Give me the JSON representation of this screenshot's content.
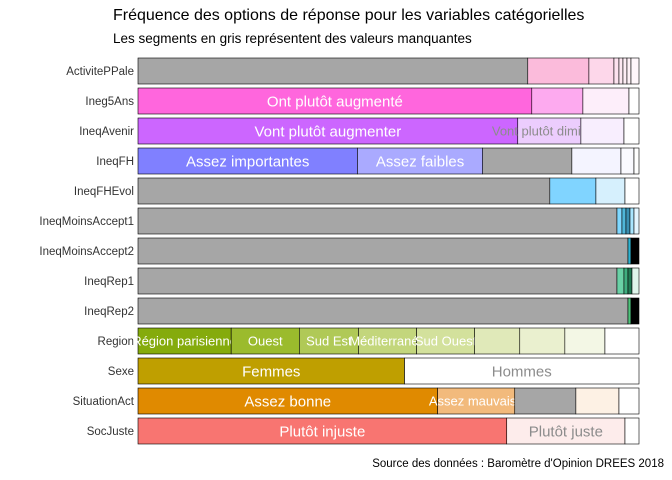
{
  "title": "Fréquence des options de réponse pour les variables catégorielles",
  "subtitle": "Les segments en gris représentent des valeurs manquantes",
  "caption": "Source des données : Baromètre d'Opinion DREES 2018",
  "chart_data": {
    "type": "bar",
    "orientation": "horizontal",
    "stacked": true,
    "scale": "proportion",
    "xlim": [
      0,
      1
    ],
    "missing_color": "#a6a6a6",
    "categories": [
      "ActivitePPale",
      "Ineg5Ans",
      "IneqAvenir",
      "IneqFH",
      "IneqFHEvol",
      "IneqMoinsAccept1",
      "IneqMoinsAccept2",
      "IneqRep1",
      "IneqRep2",
      "Region",
      "Sexe",
      "SituationAct",
      "SocJuste"
    ],
    "bars": [
      {
        "variable": "ActivitePPale",
        "segments": [
          {
            "label": "",
            "value": 0.778,
            "color": "#a6a6a6",
            "missing": true
          },
          {
            "label": "",
            "value": 0.122,
            "color": "#fbbbdb"
          },
          {
            "label": "",
            "value": 0.05,
            "color": "#fdd7ea"
          },
          {
            "label": "",
            "value": 0.01,
            "color": "#fde2ef"
          },
          {
            "label": "",
            "value": 0.008,
            "color": "#fde8f2"
          },
          {
            "label": "",
            "value": 0.008,
            "color": "#feedf5"
          },
          {
            "label": "",
            "value": 0.008,
            "color": "#fef1f7"
          },
          {
            "label": "",
            "value": 0.016,
            "color": "#fff7fb"
          }
        ]
      },
      {
        "variable": "Ineg5Ans",
        "segments": [
          {
            "label": "Ont plutôt augmenté",
            "value": 0.786,
            "color": "#ff66dd"
          },
          {
            "label": "",
            "value": 0.102,
            "color": "#fdaaef"
          },
          {
            "label": "",
            "value": 0.092,
            "color": "#fdeefa"
          },
          {
            "label": "",
            "value": 0.02,
            "color": "#ffffff"
          }
        ]
      },
      {
        "variable": "IneqAvenir",
        "segments": [
          {
            "label": "Vont plutôt augmenter",
            "value": 0.758,
            "color": "#cc66ff"
          },
          {
            "label": "Vont plutôt diminuer",
            "value": 0.126,
            "color": "#eccdfd"
          },
          {
            "label": "",
            "value": 0.086,
            "color": "#f8eefe"
          },
          {
            "label": "",
            "value": 0.03,
            "color": "#ffffff"
          }
        ]
      },
      {
        "variable": "IneqFH",
        "segments": [
          {
            "label": "Assez importantes",
            "value": 0.438,
            "color": "#8080ff"
          },
          {
            "label": "Assez faibles",
            "value": 0.25,
            "color": "#aaaaff"
          },
          {
            "label": "",
            "value": 0.178,
            "color": "#a6a6a6",
            "missing": true
          },
          {
            "label": "",
            "value": 0.098,
            "color": "#f4f4ff"
          },
          {
            "label": "",
            "value": 0.026,
            "color": "#fafaff"
          },
          {
            "label": "",
            "value": 0.01,
            "color": "#ffffff"
          }
        ]
      },
      {
        "variable": "IneqFHEvol",
        "segments": [
          {
            "label": "",
            "value": 0.822,
            "color": "#a6a6a6",
            "missing": true
          },
          {
            "label": "",
            "value": 0.092,
            "color": "#80d4ff"
          },
          {
            "label": "",
            "value": 0.058,
            "color": "#d6f0fd"
          },
          {
            "label": "",
            "value": 0.028,
            "color": "#ffffff"
          }
        ]
      },
      {
        "variable": "IneqMoinsAccept1",
        "segments": [
          {
            "label": "",
            "value": 0.956,
            "color": "#a6a6a6",
            "missing": true
          },
          {
            "label": "",
            "value": 0.01,
            "color": "#7fd8ff"
          },
          {
            "label": "",
            "value": 0.008,
            "color": "#4fb6d8"
          },
          {
            "label": "",
            "value": 0.008,
            "color": "#3a8fb0"
          },
          {
            "label": "",
            "value": 0.008,
            "color": "#a8e6ff"
          },
          {
            "label": "",
            "value": 0.01,
            "color": "#e3f6ff"
          }
        ]
      },
      {
        "variable": "IneqMoinsAccept2",
        "segments": [
          {
            "label": "",
            "value": 0.978,
            "color": "#a6a6a6",
            "missing": true
          },
          {
            "label": "",
            "value": 0.006,
            "color": "#2fb3d0"
          },
          {
            "label": "",
            "value": 0.016,
            "color": "#000000"
          }
        ]
      },
      {
        "variable": "IneqRep1",
        "segments": [
          {
            "label": "",
            "value": 0.956,
            "color": "#a6a6a6",
            "missing": true
          },
          {
            "label": "",
            "value": 0.014,
            "color": "#6ad1a6"
          },
          {
            "label": "",
            "value": 0.008,
            "color": "#3fae7f"
          },
          {
            "label": "",
            "value": 0.008,
            "color": "#227a54"
          },
          {
            "label": "",
            "value": 0.014,
            "color": "#dff5eb"
          }
        ]
      },
      {
        "variable": "IneqRep2",
        "segments": [
          {
            "label": "",
            "value": 0.978,
            "color": "#a6a6a6",
            "missing": true
          },
          {
            "label": "",
            "value": 0.006,
            "color": "#4fc37b"
          },
          {
            "label": "",
            "value": 0.016,
            "color": "#000000"
          }
        ]
      },
      {
        "variable": "Region",
        "segments": [
          {
            "label": "Région parisienne",
            "value": 0.186,
            "color": "#85ab0c"
          },
          {
            "label": "Ouest",
            "value": 0.136,
            "color": "#9bbb2d"
          },
          {
            "label": "Sud Est",
            "value": 0.118,
            "color": "#b0c957"
          },
          {
            "label": "Méditerranée",
            "value": 0.116,
            "color": "#c3d67c"
          },
          {
            "label": "Sud Ouest",
            "value": 0.116,
            "color": "#d3e19c"
          },
          {
            "label": "",
            "value": 0.09,
            "color": "#e0e9b9"
          },
          {
            "label": "",
            "value": 0.09,
            "color": "#eaf0cf"
          },
          {
            "label": "",
            "value": 0.08,
            "color": "#f3f7e5"
          },
          {
            "label": "",
            "value": 0.068,
            "color": "#ffffff"
          }
        ]
      },
      {
        "variable": "Sexe",
        "segments": [
          {
            "label": "Femmes",
            "value": 0.532,
            "color": "#bf9f00"
          },
          {
            "label": "Hommes",
            "value": 0.468,
            "color": "#ffffff"
          }
        ]
      },
      {
        "variable": "SituationAct",
        "segments": [
          {
            "label": "Assez bonne",
            "value": 0.598,
            "color": "#e08a00"
          },
          {
            "label": "Assez mauvaise",
            "value": 0.154,
            "color": "#f2ba7c"
          },
          {
            "label": "",
            "value": 0.122,
            "color": "#a6a6a6",
            "missing": true
          },
          {
            "label": "",
            "value": 0.086,
            "color": "#fdf1e4"
          },
          {
            "label": "",
            "value": 0.04,
            "color": "#ffffff"
          }
        ]
      },
      {
        "variable": "SocJuste",
        "segments": [
          {
            "label": "Plutôt injuste",
            "value": 0.736,
            "color": "#f87571"
          },
          {
            "label": "Plutôt juste",
            "value": 0.236,
            "color": "#fdeceb"
          },
          {
            "label": "",
            "value": 0.028,
            "color": "#ffffff"
          }
        ]
      }
    ]
  }
}
